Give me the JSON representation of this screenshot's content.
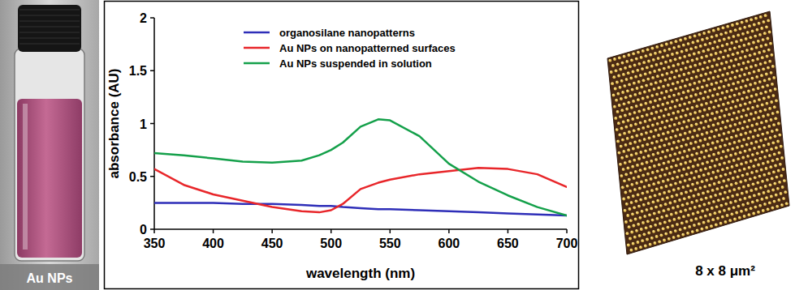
{
  "photo": {
    "label": "Au NPs"
  },
  "chart_data": {
    "type": "line",
    "xlabel": "wavelength (nm)",
    "ylabel": "absorbance (AU)",
    "x": [
      350,
      375,
      400,
      425,
      450,
      475,
      490,
      500,
      510,
      525,
      540,
      550,
      575,
      600,
      625,
      650,
      675,
      700
    ],
    "series": [
      {
        "name": "organosilane nanopatterns",
        "color": "#2e2eb8",
        "values": [
          0.25,
          0.25,
          0.25,
          0.24,
          0.24,
          0.23,
          0.22,
          0.22,
          0.21,
          0.2,
          0.19,
          0.19,
          0.18,
          0.17,
          0.16,
          0.15,
          0.14,
          0.13
        ]
      },
      {
        "name": "Au NPs on nanopatterned surfaces",
        "color": "#e8262a",
        "values": [
          0.57,
          0.42,
          0.33,
          0.27,
          0.21,
          0.17,
          0.16,
          0.18,
          0.24,
          0.38,
          0.44,
          0.47,
          0.52,
          0.55,
          0.58,
          0.57,
          0.52,
          0.4
        ]
      },
      {
        "name": "Au NPs suspended in solution",
        "color": "#14a04a",
        "values": [
          0.72,
          0.7,
          0.67,
          0.64,
          0.63,
          0.65,
          0.7,
          0.75,
          0.82,
          0.97,
          1.04,
          1.03,
          0.88,
          0.62,
          0.45,
          0.32,
          0.21,
          0.13
        ]
      }
    ],
    "xlim": [
      350,
      700
    ],
    "xticks": [
      350,
      400,
      450,
      500,
      550,
      600,
      650,
      700
    ],
    "ylim": [
      0,
      2
    ],
    "yticks": [
      0,
      0.5,
      1,
      1.5,
      2
    ],
    "legend": "top",
    "grid": false
  },
  "afm_image": {
    "label": "8 x 8 μm²"
  }
}
